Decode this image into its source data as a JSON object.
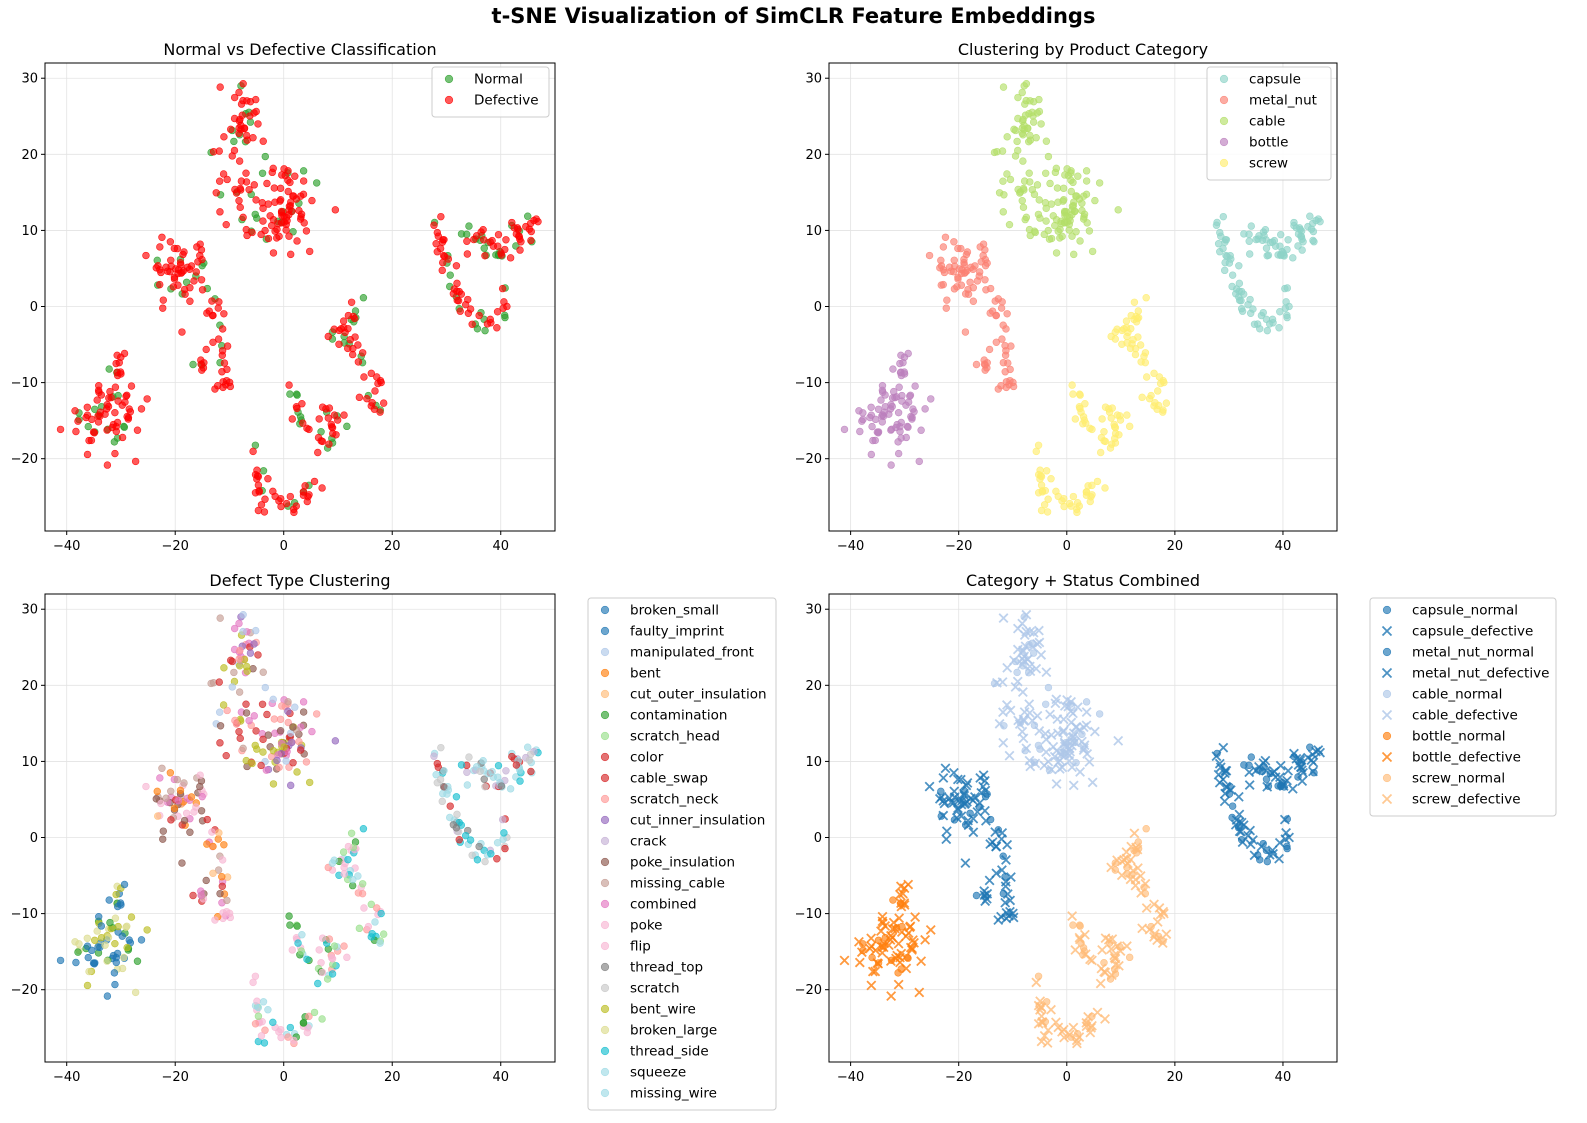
{
  "figure_title": "t-SNE Visualization of SimCLR Feature Embeddings",
  "chart_data": [
    {
      "type": "scatter",
      "title": "Normal vs Defective Classification",
      "xlim": [
        -44,
        50
      ],
      "ylim": [
        -29.5,
        32
      ],
      "xticks": [
        -40,
        -20,
        0,
        20,
        40
      ],
      "yticks": [
        -20,
        -10,
        0,
        10,
        20,
        30
      ],
      "grid": true,
      "legend_position": "upper-right",
      "series": [
        {
          "name": "Normal",
          "color": "#2ca02c",
          "marker": "o"
        },
        {
          "name": "Defective",
          "color": "#ff0000",
          "marker": "o"
        }
      ]
    },
    {
      "type": "scatter",
      "title": "Clustering by Product Category",
      "xlim": [
        -44,
        50
      ],
      "ylim": [
        -29.5,
        32
      ],
      "xticks": [
        -40,
        -20,
        0,
        20,
        40
      ],
      "yticks": [
        -20,
        -10,
        0,
        10,
        20,
        30
      ],
      "grid": true,
      "legend_position": "upper-right",
      "series": [
        {
          "name": "capsule",
          "color": "#8dd3c7",
          "marker": "o"
        },
        {
          "name": "metal_nut",
          "color": "#fb8072",
          "marker": "o"
        },
        {
          "name": "cable",
          "color": "#b3de69",
          "marker": "o"
        },
        {
          "name": "bottle",
          "color": "#bc80bd",
          "marker": "o"
        },
        {
          "name": "screw",
          "color": "#ffed6f",
          "marker": "o"
        }
      ]
    },
    {
      "type": "scatter",
      "title": "Defect Type Clustering",
      "xlim": [
        -44,
        50
      ],
      "ylim": [
        -29.5,
        32
      ],
      "xticks": [
        -40,
        -20,
        0,
        20,
        40
      ],
      "yticks": [
        -20,
        -10,
        0,
        10,
        20,
        30
      ],
      "grid": true,
      "legend_position": "outside-right",
      "series": [
        {
          "name": "broken_small",
          "color": "#1f77b4",
          "marker": "o"
        },
        {
          "name": "faulty_imprint",
          "color": "#1f77b4",
          "marker": "o"
        },
        {
          "name": "manipulated_front",
          "color": "#aec7e8",
          "marker": "o"
        },
        {
          "name": "bent",
          "color": "#ff7f0e",
          "marker": "o"
        },
        {
          "name": "cut_outer_insulation",
          "color": "#ffbb78",
          "marker": "o"
        },
        {
          "name": "contamination",
          "color": "#2ca02c",
          "marker": "o"
        },
        {
          "name": "scratch_head",
          "color": "#98df8a",
          "marker": "o"
        },
        {
          "name": "color",
          "color": "#d62728",
          "marker": "o"
        },
        {
          "name": "cable_swap",
          "color": "#d62728",
          "marker": "o"
        },
        {
          "name": "scratch_neck",
          "color": "#ff9896",
          "marker": "o"
        },
        {
          "name": "cut_inner_insulation",
          "color": "#9467bd",
          "marker": "o"
        },
        {
          "name": "crack",
          "color": "#c5b0d5",
          "marker": "o"
        },
        {
          "name": "poke_insulation",
          "color": "#8c564b",
          "marker": "o"
        },
        {
          "name": "missing_cable",
          "color": "#c49c94",
          "marker": "o"
        },
        {
          "name": "combined",
          "color": "#e377c2",
          "marker": "o"
        },
        {
          "name": "poke",
          "color": "#f7b6d2",
          "marker": "o"
        },
        {
          "name": "flip",
          "color": "#f7b6d2",
          "marker": "o"
        },
        {
          "name": "thread_top",
          "color": "#7f7f7f",
          "marker": "o"
        },
        {
          "name": "scratch",
          "color": "#c7c7c7",
          "marker": "o"
        },
        {
          "name": "bent_wire",
          "color": "#bcbd22",
          "marker": "o"
        },
        {
          "name": "broken_large",
          "color": "#dbdb8d",
          "marker": "o"
        },
        {
          "name": "thread_side",
          "color": "#17becf",
          "marker": "o"
        },
        {
          "name": "squeeze",
          "color": "#9edae5",
          "marker": "o"
        },
        {
          "name": "missing_wire",
          "color": "#9edae5",
          "marker": "o"
        }
      ]
    },
    {
      "type": "scatter",
      "title": "Category + Status Combined",
      "xlim": [
        -44,
        50
      ],
      "ylim": [
        -29.5,
        32
      ],
      "xticks": [
        -40,
        -20,
        0,
        20,
        40
      ],
      "yticks": [
        -20,
        -10,
        0,
        10,
        20,
        30
      ],
      "grid": true,
      "legend_position": "outside-right",
      "series": [
        {
          "name": "capsule_normal",
          "color": "#1f77b4",
          "marker": "o"
        },
        {
          "name": "capsule_defective",
          "color": "#1f77b4",
          "marker": "x"
        },
        {
          "name": "metal_nut_normal",
          "color": "#1f77b4",
          "marker": "o"
        },
        {
          "name": "metal_nut_defective",
          "color": "#1f77b4",
          "marker": "x"
        },
        {
          "name": "cable_normal",
          "color": "#aec7e8",
          "marker": "o"
        },
        {
          "name": "cable_defective",
          "color": "#aec7e8",
          "marker": "x"
        },
        {
          "name": "bottle_normal",
          "color": "#ff7f0e",
          "marker": "o"
        },
        {
          "name": "bottle_defective",
          "color": "#ff7f0e",
          "marker": "x"
        },
        {
          "name": "screw_normal",
          "color": "#ffbb78",
          "marker": "o"
        },
        {
          "name": "screw_defective",
          "color": "#ffbb78",
          "marker": "x"
        }
      ]
    }
  ]
}
